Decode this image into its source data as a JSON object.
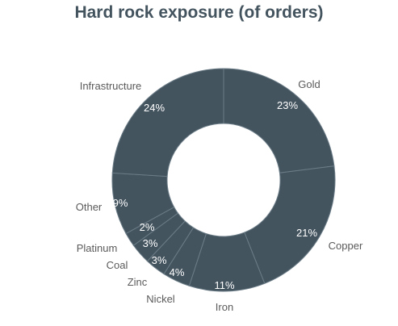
{
  "chart_data": {
    "type": "pie",
    "title": "Hard rock exposure (of orders)",
    "variant": "donut",
    "slice_color": "#44545f",
    "separator_color": "#6b7c87",
    "label_color": "#5a5a5a",
    "slices": [
      {
        "label": "Gold",
        "value": 23,
        "display": "23%"
      },
      {
        "label": "Copper",
        "value": 21,
        "display": "21%"
      },
      {
        "label": "Iron",
        "value": 11,
        "display": "11%"
      },
      {
        "label": "Nickel",
        "value": 4,
        "display": "4%"
      },
      {
        "label": "Zinc",
        "value": 3,
        "display": "3%"
      },
      {
        "label": "Coal",
        "value": 3,
        "display": "3%"
      },
      {
        "label": "Platinum",
        "value": 2,
        "display": "2%"
      },
      {
        "label": "Other",
        "value": 9,
        "display": "9%"
      },
      {
        "label": "Infrastructure",
        "value": 24,
        "display": "24%"
      }
    ]
  }
}
